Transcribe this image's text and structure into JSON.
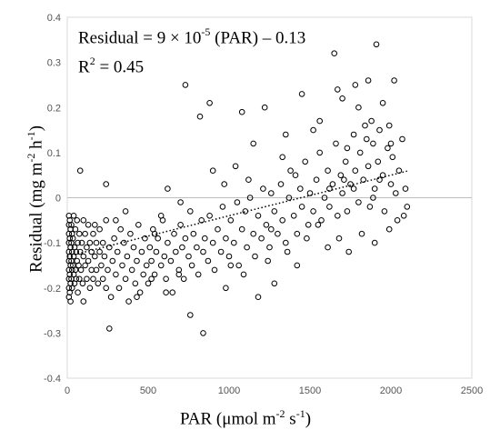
{
  "chart_data": {
    "type": "scatter",
    "xlabel": {
      "prefix": "PAR (μmol m",
      "sup1": "-2",
      "mid": " s",
      "sup2": "-1",
      "suffix": ")"
    },
    "ylabel": {
      "prefix": "Residual (mg m",
      "sup1": "-2",
      "mid": " h",
      "sup2": "-1",
      "suffix": ")"
    },
    "annotation": {
      "line1": {
        "prefix": "Residual = 9 × 10",
        "sup": "-5",
        "suffix": " (PAR) – 0.13"
      },
      "line2": {
        "prefix": "R",
        "sup": "2",
        "suffix": " = 0.45"
      }
    },
    "xlim": [
      0,
      2500
    ],
    "ylim": [
      -0.4,
      0.4
    ],
    "xticks": [
      0,
      500,
      1000,
      1500,
      2000,
      2500
    ],
    "yticks": [
      -0.4,
      -0.3,
      -0.2,
      -0.1,
      0,
      0.1,
      0.2,
      0.3,
      0.4
    ],
    "ytick_labels": [
      "-0.4",
      "-0.3",
      "-0.2",
      "-0.1",
      "0",
      "0.1",
      "0.2",
      "0.3",
      "0.4"
    ],
    "trendline": {
      "slope": 9e-05,
      "intercept": -0.13,
      "x_start": 0,
      "x_end": 2100,
      "style": "dotted"
    },
    "zero_line": true,
    "marker": "open-circle",
    "series": [
      {
        "points": [
          [
            10,
            -0.04
          ],
          [
            10,
            -0.06
          ],
          [
            10,
            -0.08
          ],
          [
            10,
            -0.1
          ],
          [
            10,
            -0.12
          ],
          [
            10,
            -0.14
          ],
          [
            10,
            -0.16
          ],
          [
            10,
            -0.18
          ],
          [
            10,
            -0.2
          ],
          [
            10,
            -0.22
          ],
          [
            15,
            -0.05
          ],
          [
            15,
            -0.09
          ],
          [
            15,
            -0.13
          ],
          [
            15,
            -0.17
          ],
          [
            15,
            -0.21
          ],
          [
            20,
            -0.07
          ],
          [
            20,
            -0.11
          ],
          [
            20,
            -0.15
          ],
          [
            20,
            -0.19
          ],
          [
            20,
            -0.23
          ],
          [
            25,
            -0.06
          ],
          [
            25,
            -0.1
          ],
          [
            25,
            -0.14
          ],
          [
            25,
            -0.18
          ],
          [
            30,
            -0.08
          ],
          [
            30,
            -0.12
          ],
          [
            30,
            -0.16
          ],
          [
            30,
            -0.2
          ],
          [
            35,
            -0.09
          ],
          [
            35,
            -0.15
          ],
          [
            40,
            -0.04
          ],
          [
            40,
            -0.13
          ],
          [
            40,
            -0.17
          ],
          [
            45,
            -0.11
          ],
          [
            45,
            -0.19
          ],
          [
            50,
            -0.07
          ],
          [
            50,
            -0.16
          ],
          [
            55,
            -0.12
          ],
          [
            55,
            -0.18
          ],
          [
            60,
            -0.05
          ],
          [
            60,
            -0.14
          ],
          [
            65,
            -0.1
          ],
          [
            65,
            -0.21
          ],
          [
            70,
            -0.15
          ],
          [
            75,
            -0.08
          ],
          [
            75,
            -0.18
          ],
          [
            80,
            -0.12
          ],
          [
            85,
            -0.16
          ],
          [
            90,
            -0.1
          ],
          [
            95,
            -0.19
          ],
          [
            100,
            -0.05
          ],
          [
            100,
            -0.13
          ],
          [
            100,
            -0.23
          ],
          [
            110,
            -0.15
          ],
          [
            110,
            -0.08
          ],
          [
            120,
            -0.11
          ],
          [
            120,
            -0.18
          ],
          [
            130,
            -0.14
          ],
          [
            130,
            -0.06
          ],
          [
            140,
            -0.2
          ],
          [
            140,
            -0.1
          ],
          [
            150,
            -0.16
          ],
          [
            150,
            -0.12
          ],
          [
            160,
            -0.08
          ],
          [
            160,
            -0.18
          ],
          [
            170,
            -0.13
          ],
          [
            180,
            -0.1
          ],
          [
            180,
            -0.16
          ],
          [
            190,
            -0.19
          ],
          [
            200,
            -0.12
          ],
          [
            200,
            -0.07
          ],
          [
            210,
            -0.15
          ],
          [
            220,
            -0.18
          ],
          [
            220,
            -0.1
          ],
          [
            230,
            -0.13
          ],
          [
            240,
            -0.2
          ],
          [
            240,
            -0.05
          ],
          [
            250,
            -0.16
          ],
          [
            260,
            -0.11
          ],
          [
            270,
            -0.22
          ],
          [
            280,
            -0.14
          ],
          [
            290,
            -0.09
          ],
          [
            300,
            -0.17
          ],
          [
            310,
            -0.12
          ],
          [
            320,
            -0.2
          ],
          [
            330,
            -0.07
          ],
          [
            340,
            -0.15
          ],
          [
            350,
            -0.1
          ],
          [
            360,
            -0.18
          ],
          [
            370,
            -0.13
          ],
          [
            380,
            -0.23
          ],
          [
            390,
            -0.08
          ],
          [
            400,
            -0.16
          ],
          [
            410,
            -0.11
          ],
          [
            420,
            -0.19
          ],
          [
            430,
            -0.14
          ],
          [
            440,
            -0.06
          ],
          [
            450,
            -0.21
          ],
          [
            460,
            -0.12
          ],
          [
            470,
            -0.17
          ],
          [
            480,
            -0.09
          ],
          [
            490,
            -0.15
          ],
          [
            500,
            -0.19
          ],
          [
            510,
            -0.11
          ],
          [
            520,
            -0.14
          ],
          [
            530,
            -0.07
          ],
          [
            540,
            -0.17
          ],
          [
            550,
            -0.12
          ],
          [
            560,
            -0.09
          ],
          [
            580,
            -0.15
          ],
          [
            590,
            -0.05
          ],
          [
            600,
            -0.13
          ],
          [
            610,
            -0.18
          ],
          [
            620,
            -0.1
          ],
          [
            640,
            -0.14
          ],
          [
            650,
            -0.21
          ],
          [
            660,
            -0.08
          ],
          [
            670,
            -0.12
          ],
          [
            690,
            -0.16
          ],
          [
            700,
            -0.06
          ],
          [
            710,
            -0.11
          ],
          [
            720,
            -0.18
          ],
          [
            730,
            -0.09
          ],
          [
            750,
            -0.13
          ],
          [
            760,
            -0.03
          ],
          [
            770,
            -0.15
          ],
          [
            780,
            -0.08
          ],
          [
            800,
            -0.11
          ],
          [
            810,
            -0.17
          ],
          [
            830,
            -0.05
          ],
          [
            840,
            -0.12
          ],
          [
            850,
            -0.09
          ],
          [
            870,
            -0.14
          ],
          [
            880,
            -0.04
          ],
          [
            900,
            -0.1
          ],
          [
            910,
            -0.16
          ],
          [
            930,
            -0.07
          ],
          [
            950,
            -0.12
          ],
          [
            960,
            -0.02
          ],
          [
            980,
            -0.09
          ],
          [
            1000,
            -0.13
          ],
          [
            1010,
            -0.05
          ],
          [
            1030,
            -0.1
          ],
          [
            1050,
            -0.01
          ],
          [
            1060,
            -0.15
          ],
          [
            1080,
            -0.07
          ],
          [
            1100,
            -0.03
          ],
          [
            1110,
            -0.11
          ],
          [
            1130,
            0.0
          ],
          [
            1150,
            -0.08
          ],
          [
            1160,
            -0.13
          ],
          [
            1180,
            -0.04
          ],
          [
            1200,
            -0.09
          ],
          [
            1210,
            0.02
          ],
          [
            1230,
            -0.06
          ],
          [
            1250,
            -0.11
          ],
          [
            1260,
            0.01
          ],
          [
            1280,
            -0.03
          ],
          [
            1300,
            -0.08
          ],
          [
            1320,
            0.03
          ],
          [
            1330,
            -0.05
          ],
          [
            1350,
            -0.1
          ],
          [
            1370,
            0.0
          ],
          [
            1380,
            0.06
          ],
          [
            1400,
            -0.04
          ],
          [
            1420,
            -0.08
          ],
          [
            1440,
            0.02
          ],
          [
            1450,
            -0.02
          ],
          [
            1470,
            0.08
          ],
          [
            1490,
            -0.06
          ],
          [
            1500,
            0.01
          ],
          [
            1520,
            -0.03
          ],
          [
            1540,
            0.04
          ],
          [
            1560,
            0.1
          ],
          [
            1570,
            -0.05
          ],
          [
            1590,
            0.0
          ],
          [
            1610,
            0.06
          ],
          [
            1620,
            -0.02
          ],
          [
            1640,
            0.03
          ],
          [
            1660,
            0.12
          ],
          [
            1670,
            -0.04
          ],
          [
            1690,
            0.05
          ],
          [
            1700,
            0.01
          ],
          [
            1720,
            0.08
          ],
          [
            1730,
            -0.03
          ],
          [
            1750,
            0.03
          ],
          [
            1770,
            0.14
          ],
          [
            1780,
            0.06
          ],
          [
            1800,
            -0.01
          ],
          [
            1810,
            0.1
          ],
          [
            1830,
            0.04
          ],
          [
            1840,
            0.16
          ],
          [
            1860,
            0.07
          ],
          [
            1870,
            -0.02
          ],
          [
            1890,
            0.12
          ],
          [
            1900,
            0.02
          ],
          [
            1920,
            0.08
          ],
          [
            1930,
            0.15
          ],
          [
            1950,
            0.05
          ],
          [
            1960,
            -0.03
          ],
          [
            1980,
            0.11
          ],
          [
            2000,
            0.03
          ],
          [
            2010,
            0.09
          ],
          [
            2030,
            0.01
          ],
          [
            2050,
            0.06
          ],
          [
            2070,
            0.13
          ],
          [
            2080,
            -0.04
          ],
          [
            2090,
            0.02
          ],
          [
            730,
            0.25
          ],
          [
            820,
            0.18
          ],
          [
            880,
            0.21
          ],
          [
            1080,
            0.19
          ],
          [
            1220,
            0.2
          ],
          [
            1450,
            0.23
          ],
          [
            1560,
            0.17
          ],
          [
            1650,
            0.32
          ],
          [
            1670,
            0.24
          ],
          [
            1780,
            0.25
          ],
          [
            1800,
            0.2
          ],
          [
            1860,
            0.26
          ],
          [
            1910,
            0.34
          ],
          [
            1950,
            0.21
          ],
          [
            2020,
            0.26
          ],
          [
            1880,
            0.17
          ],
          [
            1700,
            0.22
          ],
          [
            1520,
            0.15
          ],
          [
            1350,
            0.14
          ],
          [
            1150,
            0.12
          ],
          [
            620,
            0.02
          ],
          [
            700,
            -0.01
          ],
          [
            580,
            -0.04
          ],
          [
            540,
            -0.08
          ],
          [
            760,
            -0.26
          ],
          [
            840,
            -0.3
          ],
          [
            260,
            -0.29
          ],
          [
            980,
            -0.2
          ],
          [
            1180,
            -0.22
          ],
          [
            1280,
            -0.19
          ],
          [
            430,
            -0.22
          ],
          [
            520,
            -0.18
          ],
          [
            610,
            -0.21
          ],
          [
            690,
            -0.17
          ],
          [
            1010,
            -0.15
          ],
          [
            1090,
            -0.17
          ],
          [
            1240,
            -0.14
          ],
          [
            1360,
            -0.12
          ],
          [
            1420,
            -0.15
          ],
          [
            1610,
            -0.11
          ],
          [
            1680,
            -0.09
          ],
          [
            1740,
            -0.12
          ],
          [
            1820,
            -0.08
          ],
          [
            1900,
            -0.1
          ],
          [
            1990,
            -0.07
          ],
          [
            2040,
            -0.05
          ],
          [
            2100,
            -0.02
          ],
          [
            1260,
            -0.07
          ],
          [
            1480,
            -0.09
          ],
          [
            1550,
            -0.06
          ],
          [
            80,
            0.06
          ],
          [
            240,
            0.03
          ],
          [
            360,
            -0.03
          ],
          [
            170,
            -0.06
          ],
          [
            300,
            -0.05
          ],
          [
            900,
            0.06
          ],
          [
            970,
            0.03
          ],
          [
            1040,
            0.07
          ],
          [
            1120,
            0.04
          ],
          [
            1330,
            0.09
          ],
          [
            1410,
            0.05
          ],
          [
            1620,
            0.02
          ],
          [
            1730,
            0.11
          ],
          [
            1850,
            0.13
          ],
          [
            1990,
            0.16
          ],
          [
            2000,
            0.12
          ],
          [
            1930,
            0.04
          ],
          [
            1890,
            0.0
          ],
          [
            1770,
            0.02
          ],
          [
            1710,
            0.04
          ]
        ]
      }
    ]
  }
}
